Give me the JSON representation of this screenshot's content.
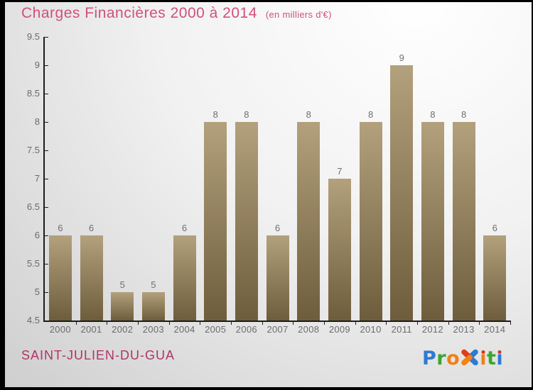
{
  "header": {
    "title": "Charges Financières 2000 à 2014",
    "subtitle": "(en milliers d'€)",
    "title_color": "#d0507c"
  },
  "chart_data": {
    "type": "bar",
    "title": "Charges Financières 2000 à 2014",
    "subtitle": "(en milliers d'€)",
    "categories": [
      "2000",
      "2001",
      "2002",
      "2003",
      "2004",
      "2005",
      "2006",
      "2007",
      "2008",
      "2009",
      "2010",
      "2011",
      "2012",
      "2013",
      "2014"
    ],
    "values": [
      6,
      6,
      5,
      5,
      6,
      8,
      8,
      6,
      8,
      7,
      8,
      9,
      8,
      8,
      6
    ],
    "xlabel": "",
    "ylabel": "",
    "ylim": [
      4.5,
      9.5
    ],
    "ytick_step": 0.5,
    "yticks": [
      "9.5",
      "9",
      "8.5",
      "8",
      "7.5",
      "7",
      "6.5",
      "6",
      "5.5",
      "5",
      "4.5"
    ],
    "grid": false,
    "legend_position": "none",
    "bar_color_top": "#b3a17d",
    "bar_color_bottom": "#6e5d3c",
    "value_label_color": "#6f6f6f",
    "axis_color": "#1c1c1c"
  },
  "footer": {
    "municipality": "SAINT-JULIEN-DU-GUA",
    "municipality_color": "#b23366",
    "logo": {
      "name": "Proxiti",
      "letters": [
        {
          "glyph": "P",
          "color": "#2e7ad2"
        },
        {
          "glyph": "r",
          "color": "#3da52f"
        },
        {
          "glyph": "o",
          "color": "#f08019"
        },
        {
          "glyph": "x-icon"
        },
        {
          "glyph": "ı",
          "color": "#f08019",
          "dot": "#e0301e"
        },
        {
          "glyph": "t",
          "color": "#3da52f"
        },
        {
          "glyph": "ı",
          "color": "#2e7ad2",
          "dot": "#e0301e"
        }
      ],
      "x_icon_colors": {
        "nw": "#e03c1e",
        "sw": "#f5820d",
        "ne": "#2e7ad2",
        "se": "#2e7ad2"
      }
    }
  }
}
